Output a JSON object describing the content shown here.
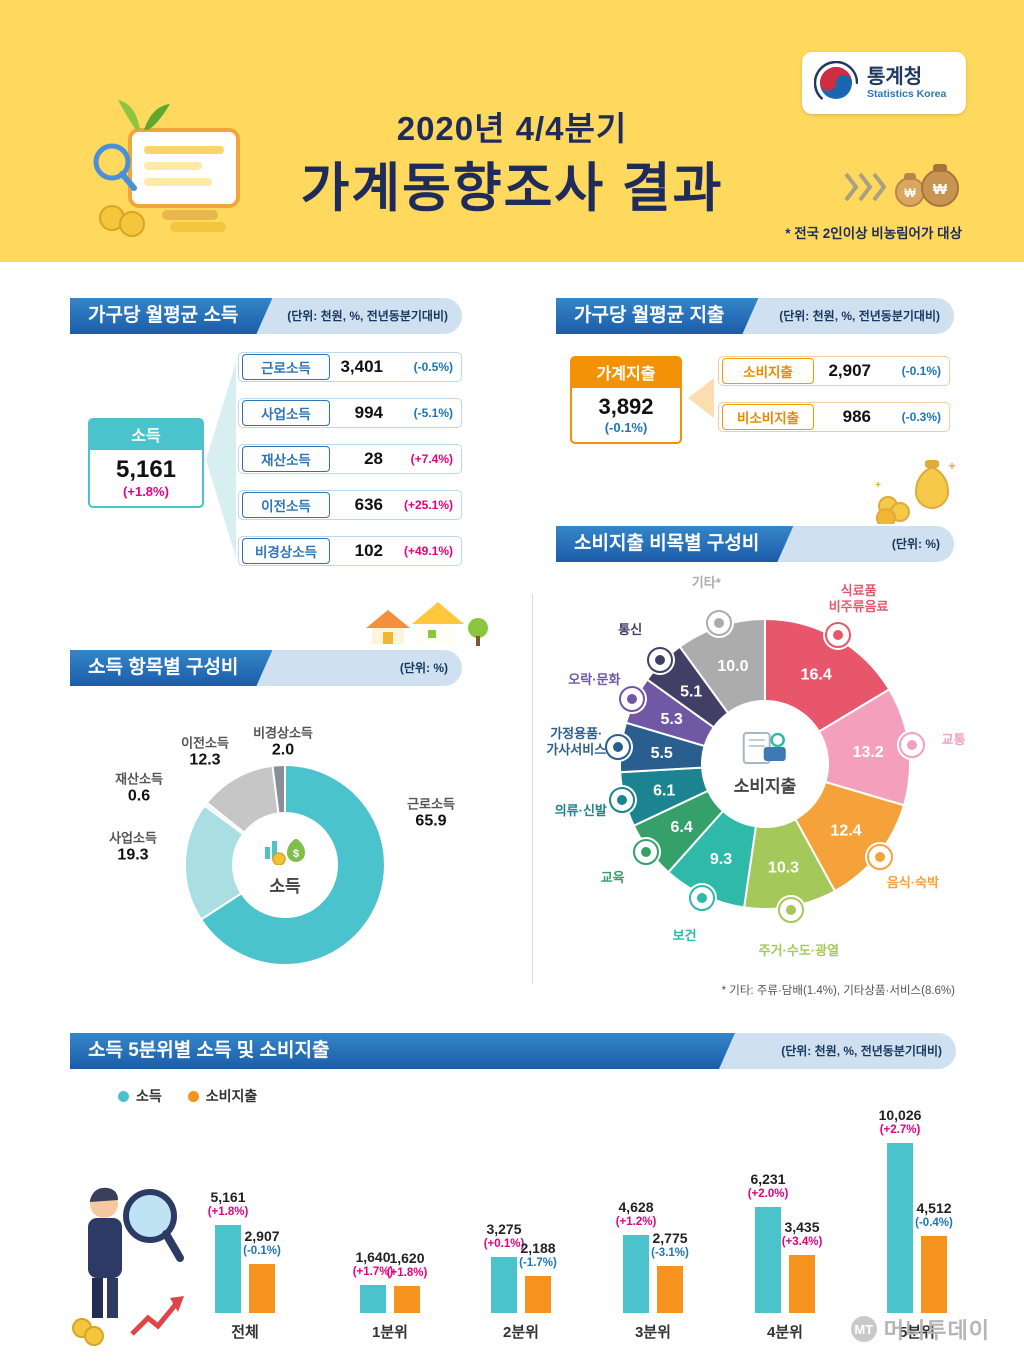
{
  "colors": {
    "positive": "#E5007E",
    "negative": "#1B75BC",
    "income_series": "#4AC3CD",
    "expense_series": "#F6921E",
    "banner_blue": "#1C5CA9",
    "accent_orange": "#F59C00",
    "header_yellow": "#FFD95E"
  },
  "header": {
    "agency": "통계청",
    "agency_en": "Statistics Korea",
    "title_line1": "2020년 4/4분기",
    "title_line2": "가계동향조사 결과",
    "scope_note": "* 전국 2인이상 비농림어가 대상"
  },
  "income_section": {
    "title": "가구당 월평균 소득",
    "unit": "(단위: 천원, %, 전년동분기대비)",
    "total": {
      "label": "소득",
      "value": "5,161",
      "change": "(+1.8%)"
    },
    "items": [
      {
        "label": "근로소득",
        "value": "3,401",
        "change": "(-0.5%)"
      },
      {
        "label": "사업소득",
        "value": "994",
        "change": "(-5.1%)"
      },
      {
        "label": "재산소득",
        "value": "28",
        "change": "(+7.4%)"
      },
      {
        "label": "이전소득",
        "value": "636",
        "change": "(+25.1%)"
      },
      {
        "label": "비경상소득",
        "value": "102",
        "change": "(+49.1%)"
      }
    ]
  },
  "expense_section": {
    "title": "가구당 월평균 지출",
    "unit": "(단위: 천원, %, 전년동분기대비)",
    "total": {
      "label": "가계지출",
      "value": "3,892",
      "change": "(-0.1%)"
    },
    "items": [
      {
        "label": "소비지출",
        "value": "2,907",
        "change": "(-0.1%)"
      },
      {
        "label": "비소비지출",
        "value": "986",
        "change": "(-0.3%)"
      }
    ]
  },
  "chart_data": [
    {
      "type": "pie",
      "name": "income-composition",
      "title": "소득 항목별 구성비",
      "unit": "(단위: %)",
      "center_label": "소득",
      "segments": [
        {
          "label": "근로소득",
          "value": 65.9,
          "color": "#4AC3CD"
        },
        {
          "label": "사업소득",
          "value": 19.3,
          "color": "#A9DEE3"
        },
        {
          "label": "재산소득",
          "value": 0.6,
          "color": "#E9F6F7"
        },
        {
          "label": "이전소득",
          "value": 12.3,
          "color": "#C6C6C6"
        },
        {
          "label": "비경상소득",
          "value": 2.0,
          "color": "#898F96"
        }
      ]
    },
    {
      "type": "pie",
      "name": "expenditure-composition",
      "title": "소비지출 비목별 구성비",
      "unit": "(단위: %)",
      "center_label": "소비지출",
      "footnote": "* 기타: 주류·담배(1.4%), 기타상품·서비스(8.6%)",
      "segments": [
        {
          "label": "식료품·비주류음료",
          "lines": [
            "식료품",
            "비주류음료"
          ],
          "value": 16.4,
          "color": "#E8566B",
          "icon": "food"
        },
        {
          "label": "교통",
          "value": 13.2,
          "color": "#F4A0BD",
          "icon": "transport"
        },
        {
          "label": "음식·숙박",
          "value": 12.4,
          "color": "#F6A23A",
          "icon": "dining"
        },
        {
          "label": "주거·수도·광열",
          "value": 10.3,
          "color": "#A4C95A",
          "icon": "housing"
        },
        {
          "label": "보건",
          "value": 9.3,
          "color": "#2FB9A9",
          "icon": "health"
        },
        {
          "label": "교육",
          "value": 6.4,
          "color": "#35A06A",
          "icon": "education"
        },
        {
          "label": "의류·신발",
          "value": 6.1,
          "color": "#1C8490",
          "icon": "clothing"
        },
        {
          "label": "가정용품·가사서비스",
          "lines": [
            "가정용품·",
            "가사서비스"
          ],
          "value": 5.5,
          "color": "#2A5E8E",
          "icon": "household"
        },
        {
          "label": "오락·문화",
          "value": 5.3,
          "color": "#7158A5",
          "icon": "recreation"
        },
        {
          "label": "통신",
          "value": 5.1,
          "color": "#413F66",
          "icon": "communication"
        },
        {
          "label": "기타*",
          "value": 10.0,
          "color": "#ACACAC",
          "icon": "etc"
        }
      ]
    },
    {
      "type": "bar",
      "name": "quintile-income-expenditure",
      "title": "소득 5분위별 소득 및 소비지출",
      "unit": "(단위: 천원, %, 전년동분기대비)",
      "legend": [
        "소득",
        "소비지출"
      ],
      "colors": [
        "#4AC3CD",
        "#F6921E"
      ],
      "categories": [
        "전체",
        "1분위",
        "2분위",
        "3분위",
        "4분위",
        "5분위"
      ],
      "series": [
        {
          "name": "소득",
          "values": [
            5161,
            1640,
            3275,
            4628,
            6231,
            10026
          ],
          "display": [
            "5,161",
            "1,640",
            "3,275",
            "4,628",
            "6,231",
            "10,026"
          ],
          "changes": [
            "(+1.8%)",
            "(+1.7%)",
            "(+0.1%)",
            "(+1.2%)",
            "(+2.0%)",
            "(+2.7%)"
          ]
        },
        {
          "name": "소비지출",
          "values": [
            2907,
            1620,
            2188,
            2775,
            3435,
            4512
          ],
          "display": [
            "2,907",
            "1,620",
            "2,188",
            "2,775",
            "3,435",
            "4,512"
          ],
          "changes": [
            "(-0.1%)",
            "(+1.8%)",
            "(-1.7%)",
            "(-3.1%)",
            "(+3.4%)",
            "(-0.4%)"
          ]
        }
      ]
    }
  ],
  "watermark": {
    "mark": "MT",
    "text": "머니투데이"
  }
}
